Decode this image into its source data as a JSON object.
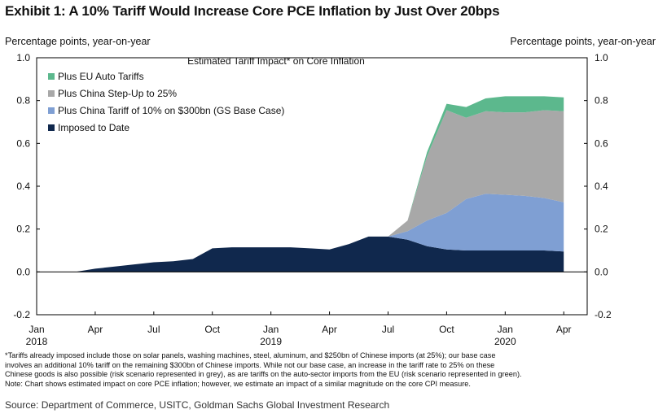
{
  "exhibit_title": "Exhibit 1: A 10% Tariff Would Increase Core PCE Inflation by Just Over 20bps",
  "left_axis_title": "Percentage points, year-on-year",
  "right_axis_title": "Percentage points, year-on-year",
  "footnotes": [
    "*Tariffs already imposed include those on solar panels, washing machines, steel, aluminum, and $250bn of Chinese imports (at 25%); our base case",
    "involves an additional 10% tariff on the remaining $300bn of Chinese imports. While not our base case, an increase in the tariff rate to 25% on these",
    "Chinese goods is also possible (risk scenario represented in grey), as are tariffs on the auto-sector imports from the EU (risk scenario represented in green).",
    "Note: Chart shows estimated impact on core PCE inflation; however, we estimate an impact of a similar magnitude on the core CPI measure."
  ],
  "source": "Source: Department of Commerce, USITC, Goldman Sachs Global Investment Research",
  "chart_data": {
    "type": "area",
    "stacked": true,
    "title": "Estimated Tariff Impact* on Core Inflation",
    "ylim": [
      -0.2,
      1.0
    ],
    "yticks": [
      -0.2,
      0.0,
      0.2,
      0.4,
      0.6,
      0.8,
      1.0
    ],
    "ytick_labels": [
      "-0.2",
      "0.0",
      "0.2",
      "0.4",
      "0.6",
      "0.8",
      "1.0"
    ],
    "x_months": [
      0,
      1,
      2,
      3,
      4,
      5,
      6,
      7,
      8,
      9,
      10,
      11,
      12,
      13,
      14,
      15,
      16,
      17,
      18,
      19,
      20,
      21,
      22,
      23,
      24,
      25,
      26,
      27
    ],
    "xticks": [
      {
        "month": 0,
        "label": "Jan",
        "year": "2018"
      },
      {
        "month": 3,
        "label": "Apr",
        "year": ""
      },
      {
        "month": 6,
        "label": "Jul",
        "year": ""
      },
      {
        "month": 9,
        "label": "Oct",
        "year": ""
      },
      {
        "month": 12,
        "label": "Jan",
        "year": "2019"
      },
      {
        "month": 15,
        "label": "Apr",
        "year": ""
      },
      {
        "month": 18,
        "label": "Jul",
        "year": ""
      },
      {
        "month": 21,
        "label": "Oct",
        "year": ""
      },
      {
        "month": 24,
        "label": "Jan",
        "year": "2020"
      },
      {
        "month": 27,
        "label": "Apr",
        "year": ""
      }
    ],
    "series": [
      {
        "name": "Imposed to Date",
        "color": "#10284d",
        "values": [
          0.0,
          0.0,
          0.0,
          0.015,
          0.025,
          0.035,
          0.045,
          0.05,
          0.06,
          0.11,
          0.115,
          0.115,
          0.115,
          0.115,
          0.11,
          0.105,
          0.13,
          0.165,
          0.165,
          0.15,
          0.12,
          0.105,
          0.1,
          0.1,
          0.1,
          0.1,
          0.1,
          0.095
        ]
      },
      {
        "name": "Plus China Tariff of 10% on $300bn (GS Base Case)",
        "color": "#7f9fd3",
        "values": [
          0,
          0,
          0,
          0,
          0,
          0,
          0,
          0,
          0,
          0,
          0,
          0,
          0,
          0,
          0,
          0,
          0,
          0,
          0,
          0.04,
          0.12,
          0.17,
          0.24,
          0.265,
          0.26,
          0.255,
          0.245,
          0.23
        ]
      },
      {
        "name": "Plus China Step-Up to 25%",
        "color": "#a8a8a8",
        "values": [
          0,
          0,
          0,
          0,
          0,
          0,
          0,
          0,
          0,
          0,
          0,
          0,
          0,
          0,
          0,
          0,
          0,
          0,
          0,
          0.05,
          0.3,
          0.48,
          0.38,
          0.385,
          0.385,
          0.39,
          0.41,
          0.425
        ]
      },
      {
        "name": "Plus EU Auto Tariffs",
        "color": "#5cb88d",
        "values": [
          0,
          0,
          0,
          0,
          0,
          0,
          0,
          0,
          0,
          0,
          0,
          0,
          0,
          0,
          0,
          0,
          0,
          0,
          0,
          0.0,
          0.02,
          0.03,
          0.05,
          0.06,
          0.075,
          0.075,
          0.065,
          0.065
        ]
      }
    ],
    "legend_order": [
      "Plus EU Auto Tariffs",
      "Plus China Step-Up to 25%",
      "Plus China Tariff of 10% on $300bn (GS Base Case)",
      "Imposed to Date"
    ]
  }
}
